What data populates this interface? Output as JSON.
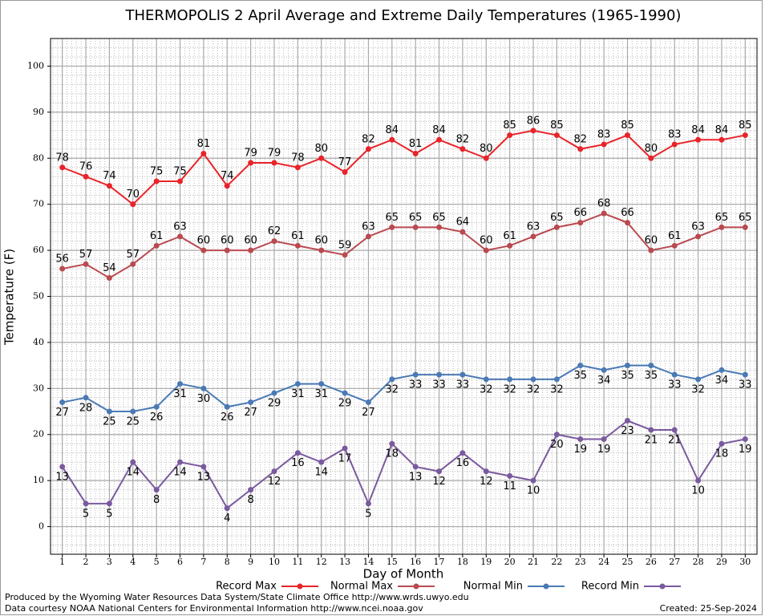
{
  "chart_data": {
    "type": "line",
    "title": "THERMOPOLIS 2 April Average and Extreme Daily Temperatures (1965-1990)",
    "x_label": "Day of Month",
    "y_label": "Temperature (F)",
    "x": [
      1,
      2,
      3,
      4,
      5,
      6,
      7,
      8,
      9,
      10,
      11,
      12,
      13,
      14,
      15,
      16,
      17,
      18,
      19,
      20,
      21,
      22,
      23,
      24,
      25,
      26,
      27,
      28,
      29,
      30
    ],
    "xlim": [
      0.5,
      30.5
    ],
    "xticks": [
      1,
      2,
      3,
      4,
      5,
      6,
      7,
      8,
      9,
      10,
      11,
      12,
      13,
      14,
      15,
      16,
      17,
      18,
      19,
      20,
      21,
      22,
      23,
      24,
      25,
      26,
      27,
      28,
      29,
      30
    ],
    "ylim": [
      -6,
      106
    ],
    "yticks": [
      0,
      10,
      20,
      30,
      40,
      50,
      60,
      70,
      80,
      90,
      100
    ],
    "grid": true,
    "legend": "bottom",
    "series": [
      {
        "name": "Record Max",
        "color": "#e8242a",
        "values": [
          78,
          76,
          74,
          70,
          75,
          75,
          81,
          74,
          79,
          79,
          78,
          80,
          77,
          82,
          84,
          81,
          84,
          82,
          80,
          85,
          86,
          85,
          82,
          83,
          85,
          80,
          83,
          84,
          84,
          85
        ]
      },
      {
        "name": "Normal Max",
        "color": "#b94a50",
        "values": [
          56,
          57,
          54,
          57,
          61,
          63,
          60,
          60,
          60,
          62,
          61,
          60,
          59,
          63,
          65,
          65,
          65,
          64,
          60,
          61,
          63,
          65,
          66,
          68,
          66,
          60,
          61,
          63,
          65,
          65
        ]
      },
      {
        "name": "Normal Min",
        "color": "#4a7ab5",
        "values": [
          27,
          28,
          25,
          25,
          26,
          31,
          30,
          26,
          27,
          29,
          31,
          31,
          29,
          27,
          32,
          33,
          33,
          33,
          32,
          32,
          32,
          32,
          35,
          34,
          35,
          35,
          33,
          32,
          34,
          33
        ]
      },
      {
        "name": "Record Min",
        "color": "#7a5a9e",
        "values": [
          13,
          5,
          5,
          14,
          8,
          14,
          13,
          4,
          8,
          12,
          16,
          14,
          17,
          5,
          18,
          13,
          12,
          16,
          12,
          11,
          10,
          20,
          19,
          19,
          23,
          21,
          21,
          10,
          18,
          19
        ]
      }
    ],
    "footer_left": [
      "Produced by the Wyoming Water Resources Data System/State Climate Office http://www.wrds.uwyo.edu",
      "Data courtesy NOAA National Centers for Environmental Information http://www.ncei.noaa.gov"
    ],
    "footer_right": "Created:  25-Sep-2024"
  }
}
